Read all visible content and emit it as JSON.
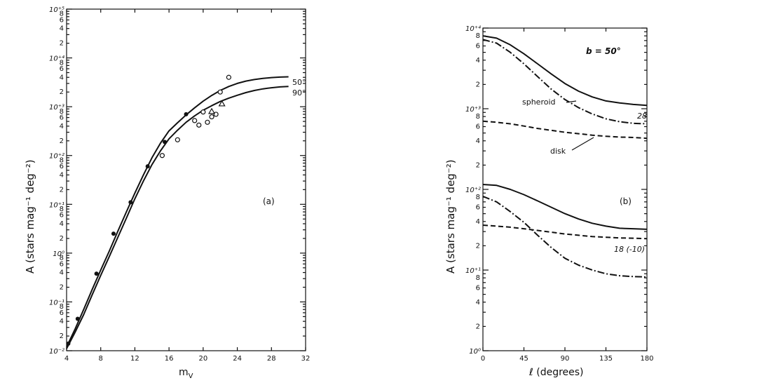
{
  "chart_data": [
    {
      "type": "line",
      "panel_label": "(a)",
      "xlabel": "m",
      "xlabel_sub": "V",
      "ylabel": "A (stars mag⁻¹ deg⁻²)",
      "xlim": [
        4,
        32
      ],
      "ylim": [
        0.01,
        100000
      ],
      "yscale": "log",
      "grid": false,
      "x_ticks": [
        4,
        8,
        12,
        16,
        20,
        24,
        28,
        32
      ],
      "y_decade_labels": [
        "10⁻²",
        "10⁻¹",
        "10⁰",
        "10⁺¹",
        "10⁺²",
        "10⁺³",
        "10⁺⁴",
        "10⁺⁵"
      ],
      "y_minor_labels": [
        "2",
        "4",
        "6",
        "8"
      ],
      "series": [
        {
          "name": "50°",
          "style": "solid",
          "x": [
            4,
            5,
            6,
            7,
            8,
            9,
            10,
            11,
            12,
            13,
            14,
            15,
            16,
            17,
            18,
            19,
            20,
            21,
            22,
            23,
            24,
            25,
            26,
            27,
            28,
            29,
            30
          ],
          "y": [
            0.012,
            0.028,
            0.07,
            0.18,
            0.45,
            1.1,
            2.8,
            7,
            17,
            40,
            90,
            180,
            320,
            470,
            680,
            950,
            1300,
            1700,
            2150,
            2600,
            3000,
            3350,
            3600,
            3800,
            3950,
            4050,
            4100
          ]
        },
        {
          "name": "90°",
          "style": "solid",
          "x": [
            4,
            5,
            6,
            7,
            8,
            9,
            10,
            11,
            12,
            13,
            14,
            15,
            16,
            17,
            18,
            19,
            20,
            21,
            22,
            23,
            24,
            25,
            26,
            27,
            28,
            29,
            30
          ],
          "y": [
            0.011,
            0.024,
            0.055,
            0.14,
            0.35,
            0.85,
            2.1,
            5.2,
            13,
            30,
            65,
            125,
            220,
            330,
            480,
            650,
            850,
            1050,
            1280,
            1500,
            1720,
            1950,
            2150,
            2320,
            2450,
            2550,
            2600
          ]
        }
      ],
      "points_filled": {
        "x": [
          4.2,
          5.3,
          7.5,
          9.5,
          11.5,
          13.5,
          15.5,
          18.0
        ],
        "y": [
          0.014,
          0.045,
          0.38,
          2.5,
          11,
          60,
          190,
          700
        ]
      },
      "points_open": {
        "x": [
          15.2,
          17.0,
          19.0,
          19.5,
          20.0,
          20.5,
          21.0,
          21.5,
          22.0,
          23.0
        ],
        "y": [
          100,
          210,
          520,
          420,
          780,
          480,
          620,
          700,
          2000,
          4000
        ]
      },
      "points_triangle": {
        "x": [
          21.0,
          22.2
        ],
        "y": [
          800,
          1150
        ]
      }
    },
    {
      "type": "line",
      "panel_label": "(b)",
      "title": "b = 50°",
      "xlabel": "ℓ (degrees)",
      "ylabel": "A (stars mag⁻¹ deg⁻²)",
      "xlim": [
        0,
        180
      ],
      "ylim": [
        1,
        10000
      ],
      "yscale": "log",
      "grid": false,
      "x_ticks": [
        0,
        45,
        90,
        135,
        180
      ],
      "y_decade_labels": [
        "10⁰",
        "10⁺¹",
        "10⁺²",
        "10⁺³",
        "10⁺⁴"
      ],
      "y_minor_labels": [
        "2",
        "4",
        "6",
        "8"
      ],
      "annotations": [
        "spheroid",
        "disk",
        "28",
        "18 (-10)"
      ],
      "series": [
        {
          "name": "28 total",
          "style": "solid",
          "x": [
            0,
            15,
            30,
            45,
            60,
            75,
            90,
            105,
            120,
            135,
            150,
            165,
            180
          ],
          "y": [
            8000,
            7500,
            6200,
            4800,
            3600,
            2700,
            2050,
            1650,
            1400,
            1250,
            1180,
            1130,
            1100
          ]
        },
        {
          "name": "28 spheroid",
          "style": "dashdot",
          "x": [
            0,
            15,
            30,
            45,
            60,
            75,
            90,
            105,
            120,
            135,
            150,
            165,
            180
          ],
          "y": [
            7200,
            6500,
            5000,
            3600,
            2500,
            1750,
            1300,
            1030,
            860,
            750,
            690,
            660,
            650
          ]
        },
        {
          "name": "28 disk",
          "style": "dashed",
          "x": [
            0,
            15,
            30,
            45,
            60,
            75,
            90,
            105,
            120,
            135,
            150,
            165,
            180
          ],
          "y": [
            700,
            680,
            650,
            610,
            570,
            540,
            510,
            490,
            470,
            455,
            445,
            440,
            430
          ]
        },
        {
          "name": "18 total",
          "style": "solid",
          "x": [
            0,
            15,
            30,
            45,
            60,
            75,
            90,
            105,
            120,
            135,
            150,
            165,
            180
          ],
          "y": [
            115,
            112,
            100,
            86,
            72,
            60,
            50,
            43,
            38,
            35,
            33,
            32.5,
            32
          ]
        },
        {
          "name": "18 spheroid",
          "style": "dashdot",
          "x": [
            0,
            15,
            30,
            45,
            60,
            75,
            90,
            105,
            120,
            135,
            150,
            165,
            180
          ],
          "y": [
            82,
            70,
            53,
            39,
            27,
            19,
            14,
            11.5,
            10,
            9,
            8.5,
            8.3,
            8.2
          ]
        },
        {
          "name": "18 disk",
          "style": "dashed",
          "x": [
            0,
            15,
            30,
            45,
            60,
            75,
            90,
            105,
            120,
            135,
            150,
            165,
            180
          ],
          "y": [
            36,
            35,
            34,
            32.5,
            31,
            29.5,
            28,
            27,
            26,
            25.5,
            25,
            24.8,
            24.5
          ]
        }
      ]
    }
  ]
}
